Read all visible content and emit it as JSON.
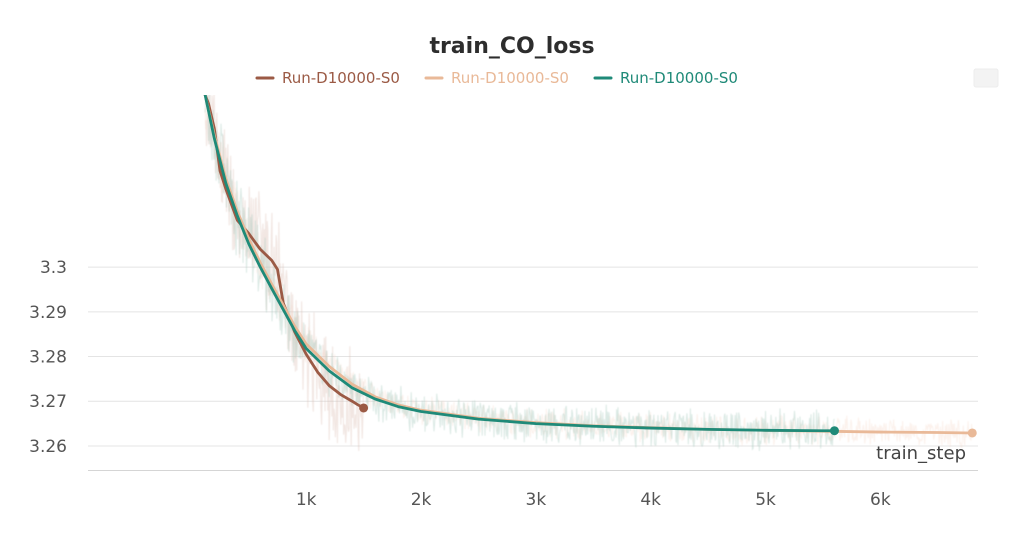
{
  "chart_data": {
    "type": "line",
    "title": "train_CO_loss",
    "xlabel": "train_step",
    "ylabel": "",
    "x_ticks": [
      1000,
      2000,
      3000,
      4000,
      5000,
      6000
    ],
    "x_tick_labels": [
      "1k",
      "2k",
      "3k",
      "4k",
      "5k",
      "6k"
    ],
    "y_ticks": [
      3.26,
      3.27,
      3.28,
      3.29,
      3.3
    ],
    "y_tick_labels": [
      "3.26",
      "3.27",
      "3.28",
      "3.29",
      "3.3"
    ],
    "xlim": [
      -900,
      6850
    ],
    "ylim": [
      3.2535,
      3.3385
    ],
    "grid": true,
    "legend_position": "top",
    "series": [
      {
        "name": "Run-D10000-S0",
        "color": "#9b5a45",
        "x": [
          120,
          150,
          200,
          250,
          300,
          400,
          500,
          600,
          700,
          750,
          800,
          900,
          1000,
          1100,
          1200,
          1300,
          1400,
          1450,
          1500
        ],
        "values": [
          3.3385,
          3.3365,
          3.331,
          3.3215,
          3.3175,
          3.3105,
          3.3075,
          3.304,
          3.3015,
          3.2995,
          3.292,
          3.2855,
          3.2805,
          3.2765,
          3.2735,
          3.2715,
          3.27,
          3.2692,
          3.2685
        ],
        "end_value": 3.2685
      },
      {
        "name": "Run-D10000-S0",
        "color": "#e9b998",
        "x": [
          120,
          200,
          300,
          400,
          500,
          600,
          700,
          800,
          900,
          1000,
          1200,
          1400,
          1600,
          1800,
          2000,
          2500,
          3000,
          3500,
          4000,
          4500,
          5000,
          5500,
          6000,
          6500,
          6800
        ],
        "values": [
          3.3385,
          3.3295,
          3.3198,
          3.3125,
          3.3063,
          3.301,
          3.2962,
          3.2915,
          3.2868,
          3.2828,
          3.2778,
          3.2738,
          3.271,
          3.2692,
          3.268,
          3.2662,
          3.2652,
          3.2645,
          3.2641,
          3.2637,
          3.2635,
          3.2633,
          3.2631,
          3.263,
          3.2629
        ],
        "end_value": 3.2629
      },
      {
        "name": "Run-D10000-S0",
        "color": "#1f8a78",
        "x": [
          120,
          200,
          300,
          400,
          500,
          600,
          700,
          800,
          900,
          1000,
          1200,
          1400,
          1600,
          1800,
          2000,
          2500,
          3000,
          3500,
          4000,
          4500,
          5000,
          5500,
          5600
        ],
        "values": [
          3.3385,
          3.3288,
          3.3188,
          3.3115,
          3.3052,
          3.3,
          3.2952,
          3.2905,
          3.2858,
          3.2818,
          3.2768,
          3.273,
          3.2705,
          3.2688,
          3.2677,
          3.266,
          3.265,
          3.2644,
          3.264,
          3.2637,
          3.2635,
          3.2634,
          3.2634
        ],
        "end_value": 3.2634
      }
    ]
  },
  "icons": {
    "corner": "menu-icon"
  }
}
